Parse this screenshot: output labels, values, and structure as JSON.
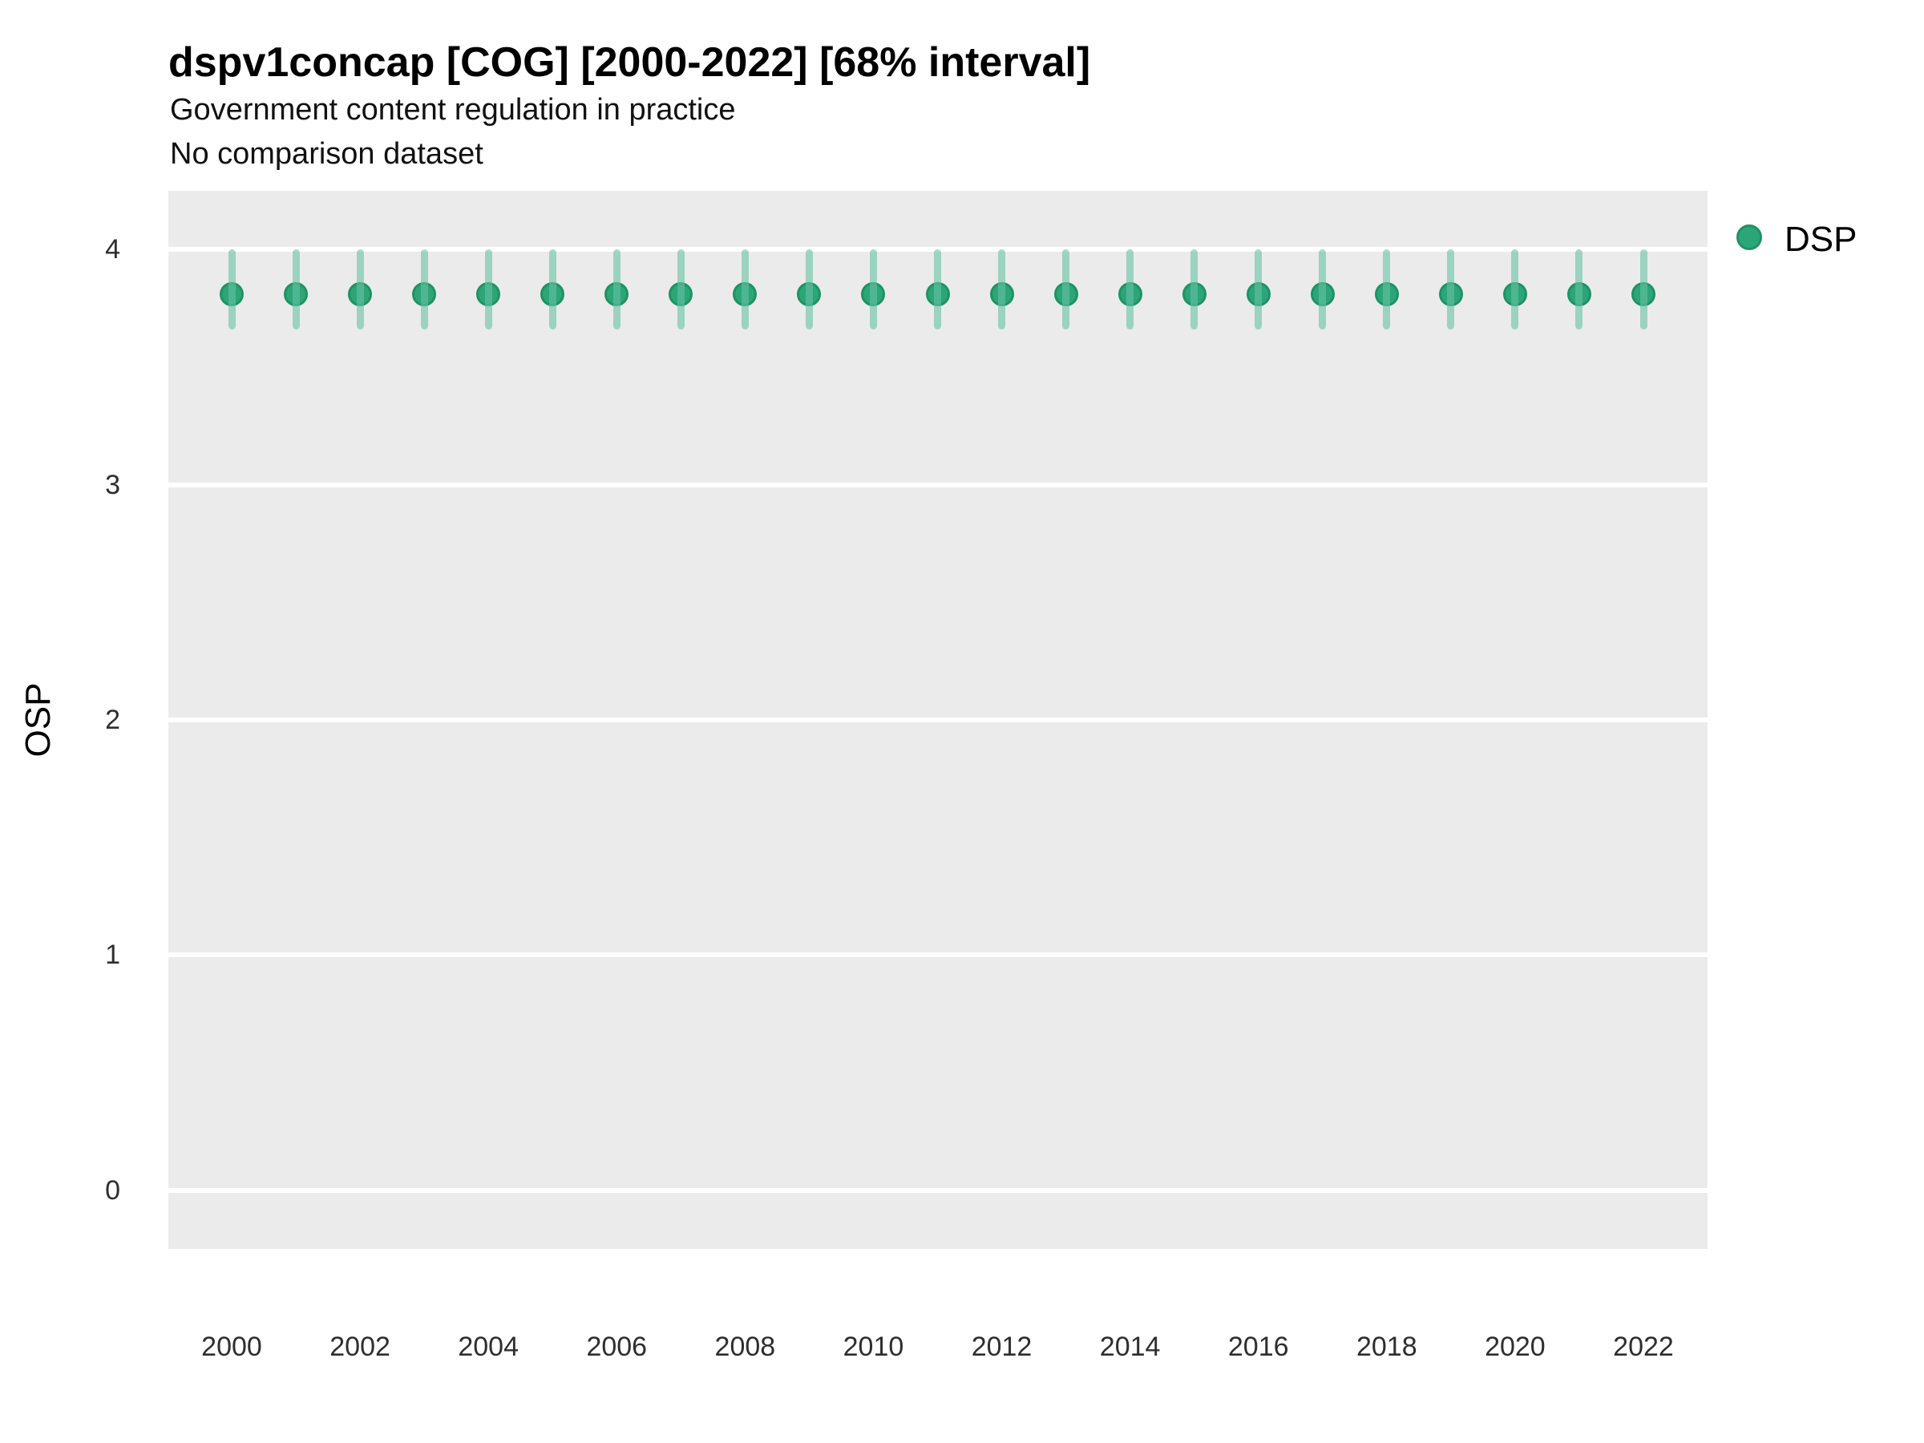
{
  "title": "dspv1concap [COG] [2000-2022] [68% interval]",
  "subtitle1": "Government content regulation in practice",
  "subtitle2": "No comparison dataset",
  "legend": {
    "label": "DSP"
  },
  "colors": {
    "point_fill": "#2CA678",
    "point_stroke": "#1F9265",
    "interval_band": "rgba(102,194,164,0.6)",
    "panel_background": "#EBEBEB",
    "gridline": "#FFFFFF",
    "axis_text": "#2e2e2e",
    "title_text": "#000000"
  },
  "chart_data": {
    "type": "scatter",
    "title": "dspv1concap [COG] [2000-2022] [68% interval]",
    "subtitle": [
      "Government content regulation in practice",
      "No comparison dataset"
    ],
    "xlabel": "",
    "ylabel": "OSP",
    "interval_label": "68% interval",
    "legend_position": "right",
    "grid": "horizontal-major-only",
    "ylim": [
      -0.25,
      4.25
    ],
    "yticks": [
      0,
      1,
      2,
      3,
      4
    ],
    "xticks": [
      2000,
      2002,
      2004,
      2006,
      2008,
      2010,
      2012,
      2014,
      2016,
      2018,
      2020,
      2022
    ],
    "x": [
      2000,
      2001,
      2002,
      2003,
      2004,
      2005,
      2006,
      2007,
      2008,
      2009,
      2010,
      2011,
      2012,
      2013,
      2014,
      2015,
      2016,
      2017,
      2018,
      2019,
      2020,
      2021,
      2022
    ],
    "series": [
      {
        "name": "DSP",
        "values": [
          3.81,
          3.81,
          3.81,
          3.81,
          3.81,
          3.81,
          3.81,
          3.81,
          3.81,
          3.81,
          3.81,
          3.81,
          3.81,
          3.81,
          3.81,
          3.81,
          3.81,
          3.81,
          3.81,
          3.81,
          3.81,
          3.81,
          3.81
        ],
        "lower": [
          3.66,
          3.66,
          3.66,
          3.66,
          3.66,
          3.66,
          3.66,
          3.66,
          3.66,
          3.66,
          3.66,
          3.66,
          3.66,
          3.66,
          3.66,
          3.66,
          3.66,
          3.66,
          3.66,
          3.66,
          3.66,
          3.66,
          3.66
        ],
        "upper": [
          4.0,
          4.0,
          4.0,
          4.0,
          4.0,
          4.0,
          4.0,
          4.0,
          4.0,
          4.0,
          4.0,
          4.0,
          4.0,
          4.0,
          4.0,
          4.0,
          4.0,
          4.0,
          4.0,
          4.0,
          4.0,
          4.0,
          4.0
        ]
      }
    ]
  }
}
